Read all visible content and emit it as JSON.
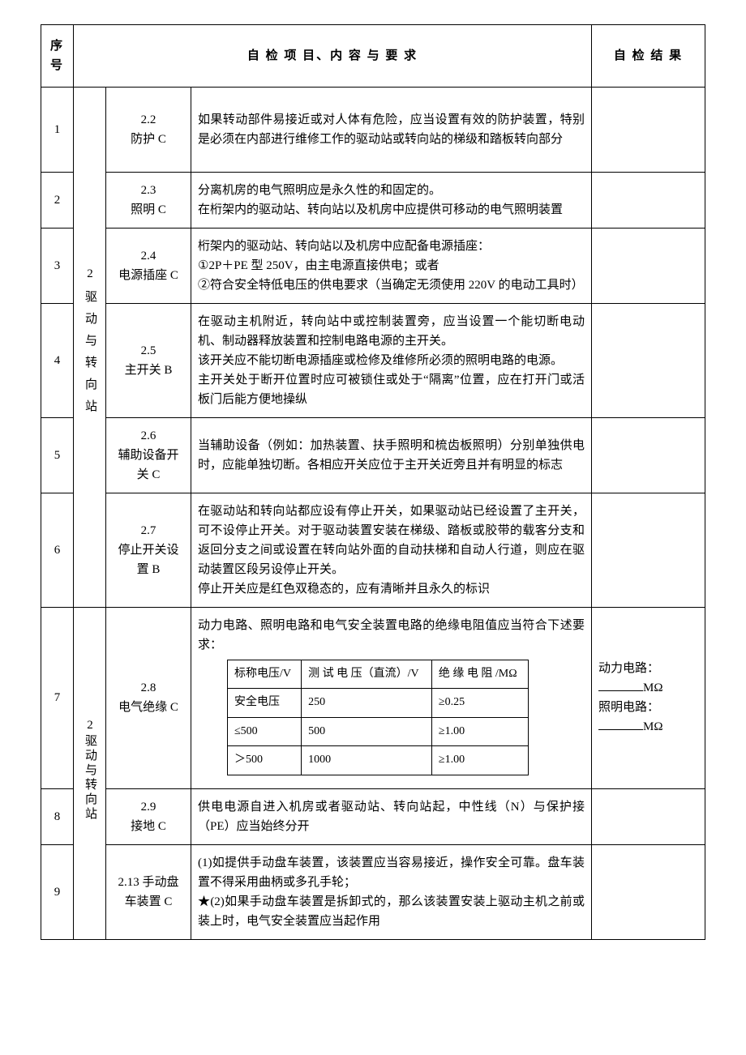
{
  "header": {
    "seq": "序号",
    "project": "自 检 项 目、内 容 与 要 求",
    "result": "自 检 结 果"
  },
  "category": {
    "a": "2驱动与转向站",
    "b": "2驱动与转向站"
  },
  "rows": {
    "r1": {
      "num": "1",
      "name": "2.2\n防护 C",
      "desc": "如果转动部件易接近或对人体有危险，应当设置有效的防护装置，特别是必须在内部进行维修工作的驱动站或转向站的梯级和踏板转向部分"
    },
    "r2": {
      "num": "2",
      "name": "2.3\n照明 C",
      "desc": "分离机房的电气照明应是永久性的和固定的。\n在桁架内的驱动站、转向站以及机房中应提供可移动的电气照明装置"
    },
    "r3": {
      "num": "3",
      "name": "2.4\n电源插座 C",
      "desc": "桁架内的驱动站、转向站以及机房中应配备电源插座：\n①2P＋PE 型 250V，由主电源直接供电；或者\n②符合安全特低电压的供电要求（当确定无须使用 220V 的电动工具时）"
    },
    "r4": {
      "num": "4",
      "name": "2.5\n主开关 B",
      "desc": "在驱动主机附近，转向站中或控制装置旁，应当设置一个能切断电动机、制动器释放装置和控制电路电源的主开关。\n该开关应不能切断电源插座或检修及维修所必须的照明电路的电源。\n主开关处于断开位置时应可被锁住或处于“隔离”位置，应在打开门或活板门后能方便地操纵"
    },
    "r5": {
      "num": "5",
      "name": "2.6\n辅助设备开关 C",
      "desc": "当辅助设备（例如：加热装置、扶手照明和梳齿板照明）分别单独供电时，应能单独切断。各相应开关应位于主开关近旁且并有明显的标志"
    },
    "r6": {
      "num": "6",
      "name": "2.7\n停止开关设置 B",
      "desc": "在驱动站和转向站都应设有停止开关，如果驱动站已经设置了主开关，可不设停止开关。对于驱动装置安装在梯级、踏板或胶带的载客分支和返回分支之间或设置在转向站外面的自动扶梯和自动人行道，则应在驱动装置区段另设停止开关。\n停止开关应是红色双稳态的，应有清晰并且永久的标识"
    },
    "r7": {
      "num": "7",
      "name": "2.8\n电气绝缘 C",
      "desc_pre": "动力电路、照明电路和电气安全装置电路的绝缘电阻值应当符合下述要求：",
      "result_l1": "动力电路：",
      "result_u1": "MΩ",
      "result_l2": "照明电路：",
      "result_u2": "MΩ"
    },
    "r8": {
      "num": "8",
      "name": "2.9\n接地 C",
      "desc": "供电电源自进入机房或者驱动站、转向站起，中性线（N）与保护接（PE）应当始终分开"
    },
    "r9": {
      "num": "9",
      "name": "2.13 手动盘车装置 C",
      "desc": "(1)如提供手动盘车装置，该装置应当容易接近，操作安全可靠。盘车装置不得采用曲柄或多孔手轮；\n★(2)如果手动盘车装置是拆卸式的，那么该装置安装上驱动主机之前或装上时，电气安全装置应当起作用"
    }
  },
  "inner_table": {
    "h1": "标称电压/V",
    "h2": "测 试 电 压（直流）/V",
    "h3": "绝 缘 电 阻 /MΩ",
    "c1a": "安全电压",
    "c1b": "250",
    "c1c": "≥0.25",
    "c2a": "≤500",
    "c2b": "500",
    "c2c": "≥1.00",
    "c3a": "＞500",
    "c3b": "1000",
    "c3c": "≥1.00"
  },
  "style": {
    "border_color": "#000000",
    "bg_color": "#ffffff",
    "text_color": "#000000",
    "font_family": "SimSun",
    "base_fontsize": 15,
    "header_fontsize": 15,
    "inner_fontsize": 14,
    "cols": {
      "seq": 40,
      "cat": 40,
      "name": 105,
      "result": 140
    }
  }
}
